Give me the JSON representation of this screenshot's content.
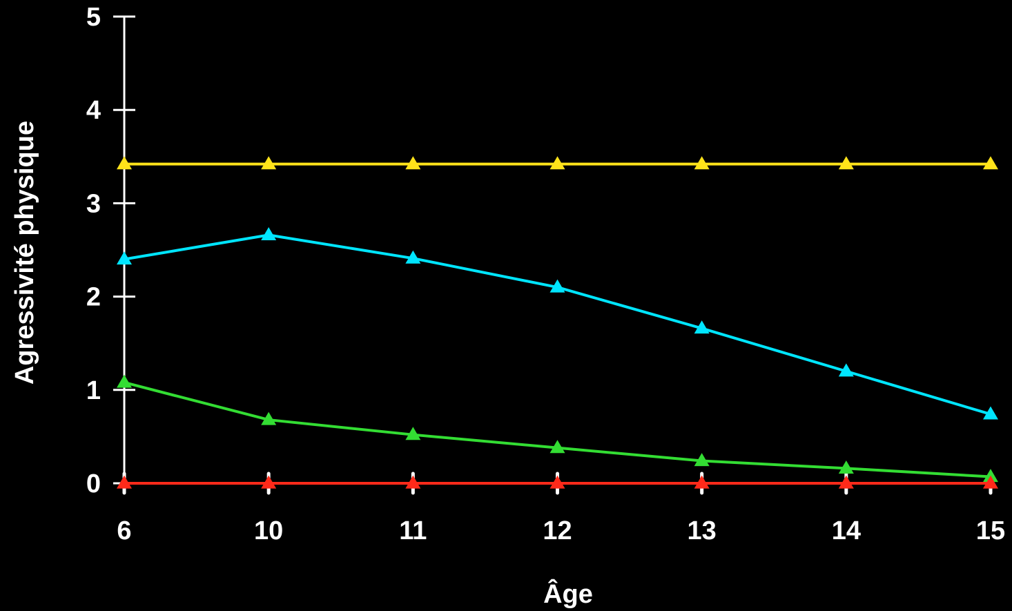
{
  "chart_data": {
    "type": "line",
    "title": "",
    "xlabel": "Âge",
    "ylabel": "Agressivité physique",
    "categories": [
      "6",
      "10",
      "11",
      "12",
      "13",
      "14",
      "15"
    ],
    "yticks": [
      "0",
      "1",
      "2",
      "3",
      "4",
      "5"
    ],
    "ylim": [
      0,
      5
    ],
    "grid": false,
    "legend": "none",
    "marker": "triangle",
    "series": [
      {
        "color": "#FFE31A",
        "values": [
          3.42,
          3.42,
          3.42,
          3.42,
          3.42,
          3.42,
          3.42
        ]
      },
      {
        "color": "#00E5FF",
        "values": [
          2.4,
          2.66,
          2.41,
          2.1,
          1.66,
          1.2,
          0.74
        ]
      },
      {
        "color": "#33DD33",
        "values": [
          1.08,
          0.68,
          0.52,
          0.38,
          0.24,
          0.16,
          0.07
        ]
      },
      {
        "color": "#FF2A1A",
        "values": [
          0.0,
          0.0,
          0.0,
          0.0,
          0.0,
          0.0,
          0.0
        ]
      }
    ]
  }
}
